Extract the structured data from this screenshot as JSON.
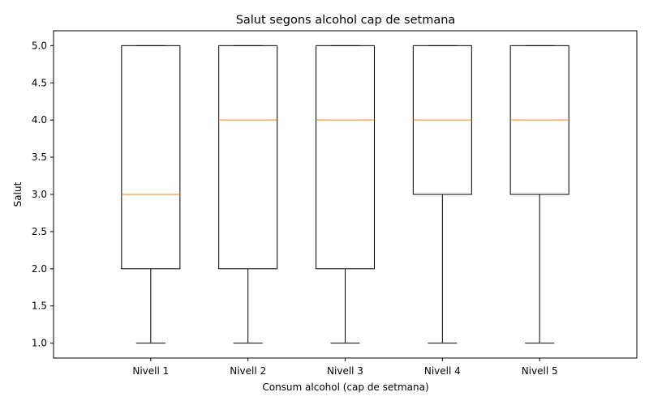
{
  "chart_data": {
    "type": "box",
    "title": "Salut segons alcohol cap de setmana",
    "xlabel": "Consum alcohol (cap de setmana)",
    "ylabel": "Salut",
    "ylim": [
      0.8,
      5.2
    ],
    "yticks": [
      "1.0",
      "1.5",
      "2.0",
      "2.5",
      "3.0",
      "3.5",
      "4.0",
      "4.5",
      "5.0"
    ],
    "grid": false,
    "categories": [
      "Nivell 1",
      "Nivell 2",
      "Nivell 3",
      "Nivell 4",
      "Nivell 5"
    ],
    "series": [
      {
        "whislo": 1,
        "q1": 2,
        "med": 3,
        "q3": 5,
        "whishi": 5
      },
      {
        "whislo": 1,
        "q1": 2,
        "med": 4,
        "q3": 5,
        "whishi": 5
      },
      {
        "whislo": 1,
        "q1": 2,
        "med": 4,
        "q3": 5,
        "whishi": 5
      },
      {
        "whislo": 1,
        "q1": 3,
        "med": 4,
        "q3": 5,
        "whishi": 5
      },
      {
        "whislo": 1,
        "q1": 3,
        "med": 4,
        "q3": 5,
        "whishi": 5
      }
    ],
    "colors": {
      "box": "#000000",
      "median": "#ff7f0e"
    }
  }
}
